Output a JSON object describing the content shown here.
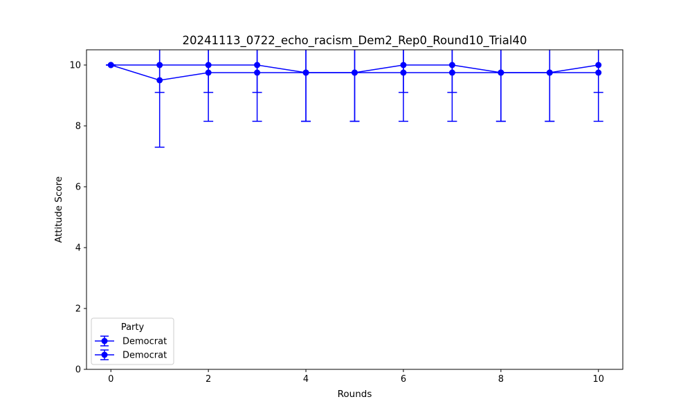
{
  "chart_data": {
    "type": "line",
    "title": "20241113_0722_echo_racism_Dem2_Rep0_Round10_Trial40",
    "xlabel": "Rounds",
    "ylabel": "Attitude Score",
    "xlim": [
      -0.5,
      10.5
    ],
    "ylim": [
      0,
      10.5
    ],
    "xticks": [
      0,
      2,
      4,
      6,
      8,
      10
    ],
    "yticks": [
      0,
      2,
      4,
      6,
      8,
      10
    ],
    "grid": false,
    "legend": {
      "title": "Party",
      "placement": "lower-left"
    },
    "color": "#0000ff",
    "series": [
      {
        "name": "Democrat",
        "x": [
          0,
          1,
          2,
          3,
          4,
          5,
          6,
          7,
          8,
          9,
          10
        ],
        "values": [
          10,
          9.5,
          9.75,
          9.75,
          9.75,
          9.75,
          9.75,
          9.75,
          9.75,
          9.75,
          9.75
        ],
        "error": [
          0,
          2.2,
          1.6,
          1.6,
          1.6,
          1.6,
          1.6,
          1.6,
          1.6,
          1.6,
          1.6
        ]
      },
      {
        "name": "Democrat",
        "x": [
          0,
          1,
          2,
          3,
          4,
          5,
          6,
          7,
          8,
          9,
          10
        ],
        "values": [
          10,
          10,
          10,
          10,
          9.75,
          9.75,
          10,
          10,
          9.75,
          9.75,
          10
        ],
        "error": [
          0,
          0.9,
          0.9,
          0.9,
          1.6,
          1.6,
          0.9,
          0.9,
          1.6,
          1.6,
          0.9
        ]
      }
    ]
  }
}
